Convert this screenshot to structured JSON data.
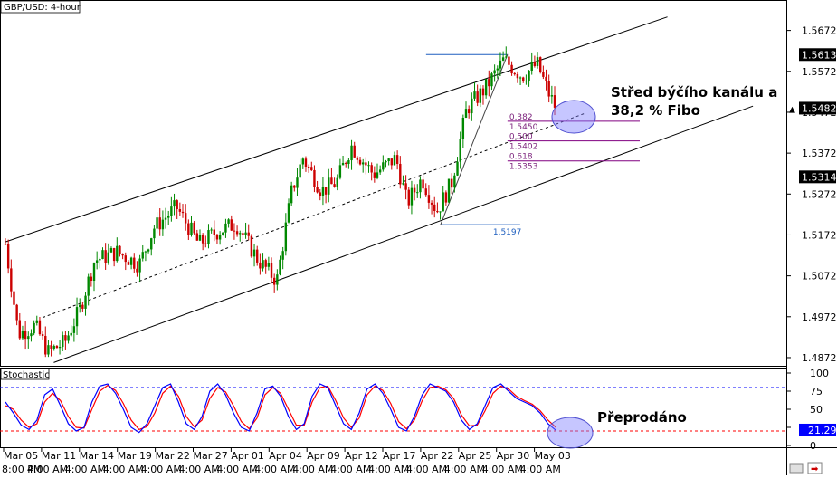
{
  "chart_data": {
    "type": "candlestick",
    "title": "GBP/USD: 4-hour",
    "price_axis": {
      "ticks": [
        "1.5672",
        "1.5572",
        "1.5472",
        "1.5372",
        "1.5272",
        "1.5172",
        "1.5072",
        "1.4972",
        "1.4872"
      ],
      "ylim": [
        1.4852,
        1.5742
      ],
      "current_price": "1.5482",
      "marked_levels": [
        "1.5613",
        "1.5314"
      ]
    },
    "x_axis": {
      "labels": [
        "Mar 05",
        "Mar 11",
        "Mar 14",
        "Mar 19",
        "Mar 22",
        "Mar 27",
        "Apr 01",
        "Apr 04",
        "Apr 09",
        "Apr 12",
        "Apr 17",
        "Apr 22",
        "Apr 25",
        "Apr 30",
        "May 03"
      ],
      "time_labels": [
        "8:00 PM",
        "4:00 AM",
        "4:00 AM",
        "4:00 AM",
        "4:00 AM",
        "4:00 AM",
        "4:00 AM",
        "4:00 AM",
        "4:00 AM",
        "4:00 AM",
        "4:00 AM",
        "4:00 AM",
        "4:00 AM",
        "4:00 AM",
        "4:00 AM"
      ]
    },
    "price_path": [
      {
        "x": 0,
        "y": 1.515
      },
      {
        "x": 0.35,
        "y": 1.493
      },
      {
        "x": 0.8,
        "y": 1.495
      },
      {
        "x": 1.15,
        "y": 1.4885
      },
      {
        "x": 1.6,
        "y": 1.491
      },
      {
        "x": 2.0,
        "y": 1.499
      },
      {
        "x": 2.4,
        "y": 1.511
      },
      {
        "x": 3.0,
        "y": 1.513
      },
      {
        "x": 3.6,
        "y": 1.51
      },
      {
        "x": 4.0,
        "y": 1.519
      },
      {
        "x": 4.6,
        "y": 1.524
      },
      {
        "x": 5.2,
        "y": 1.515
      },
      {
        "x": 5.7,
        "y": 1.518
      },
      {
        "x": 6.2,
        "y": 1.52
      },
      {
        "x": 6.8,
        "y": 1.511
      },
      {
        "x": 7.3,
        "y": 1.506
      },
      {
        "x": 7.7,
        "y": 1.528
      },
      {
        "x": 8.0,
        "y": 1.536
      },
      {
        "x": 8.5,
        "y": 1.528
      },
      {
        "x": 8.9,
        "y": 1.53
      },
      {
        "x": 9.3,
        "y": 1.539
      },
      {
        "x": 9.9,
        "y": 1.532
      },
      {
        "x": 10.5,
        "y": 1.536
      },
      {
        "x": 10.8,
        "y": 1.525
      },
      {
        "x": 11.2,
        "y": 1.531
      },
      {
        "x": 11.6,
        "y": 1.523
      },
      {
        "x": 12.0,
        "y": 1.53
      },
      {
        "x": 12.4,
        "y": 1.548
      },
      {
        "x": 12.9,
        "y": 1.553
      },
      {
        "x": 13.4,
        "y": 1.56
      },
      {
        "x": 13.9,
        "y": 1.556
      },
      {
        "x": 14.3,
        "y": 1.559
      },
      {
        "x": 14.6,
        "y": 1.552
      },
      {
        "x": 14.8,
        "y": 1.5482
      }
    ],
    "channel": {
      "upper": {
        "x1": 0,
        "y1": 1.5155,
        "x2": 17.8,
        "y2": 1.5705
      },
      "lower": {
        "x1": 1.3,
        "y1": 1.486,
        "x2": 20.1,
        "y2": 1.5487
      },
      "middle": {
        "x1": 1.0,
        "y1": 1.497,
        "x2": 15.6,
        "y2": 1.547
      }
    },
    "fibonacci": {
      "swing_low": "1.5197",
      "levels": [
        {
          "ratio": "0.382",
          "price": "1.5450"
        },
        {
          "ratio": "0.500",
          "price": "1.5402"
        },
        {
          "ratio": "0.618",
          "price": "1.5353"
        }
      ]
    },
    "stochastic": {
      "title": "Stochastic",
      "ticks": [
        "100",
        "75",
        "50",
        "25",
        "0"
      ],
      "ylim": [
        0,
        100
      ],
      "overbought": 80,
      "oversold": 20,
      "current": "21.29",
      "k": [
        60,
        45,
        28,
        22,
        35,
        70,
        78,
        55,
        30,
        20,
        25,
        60,
        82,
        85,
        72,
        50,
        25,
        18,
        30,
        55,
        80,
        85,
        60,
        30,
        22,
        40,
        75,
        85,
        70,
        45,
        25,
        20,
        45,
        78,
        82,
        68,
        40,
        22,
        30,
        68,
        85,
        80,
        55,
        30,
        22,
        45,
        78,
        85,
        72,
        50,
        25,
        20,
        40,
        70,
        85,
        80,
        75,
        60,
        35,
        22,
        30,
        55,
        80,
        85,
        75,
        65,
        60,
        55,
        45,
        30,
        21
      ],
      "d": [
        55,
        50,
        35,
        25,
        30,
        60,
        72,
        62,
        40,
        25,
        24,
        50,
        75,
        83,
        76,
        58,
        35,
        22,
        26,
        45,
        72,
        82,
        68,
        40,
        26,
        35,
        65,
        80,
        74,
        55,
        33,
        23,
        38,
        70,
        80,
        72,
        50,
        28,
        28,
        60,
        80,
        82,
        62,
        38,
        25,
        38,
        70,
        82,
        76,
        58,
        33,
        23,
        35,
        62,
        80,
        82,
        77,
        65,
        42,
        27,
        28,
        48,
        72,
        82,
        78,
        68,
        62,
        57,
        48,
        35,
        25
      ]
    }
  },
  "annotations": {
    "channel_note_line1": "Střed býčího kanálu a",
    "channel_note_line2": "38,2 % Fibo",
    "oversold_note": "Přeprodáno"
  },
  "colors": {
    "bull": "#008800",
    "bear": "#cc0000",
    "k_line": "#0000ff",
    "d_line": "#ff0000",
    "fib": "#800080",
    "fib_anchor": "#1f5fbf",
    "highlight": "#8080ff"
  }
}
